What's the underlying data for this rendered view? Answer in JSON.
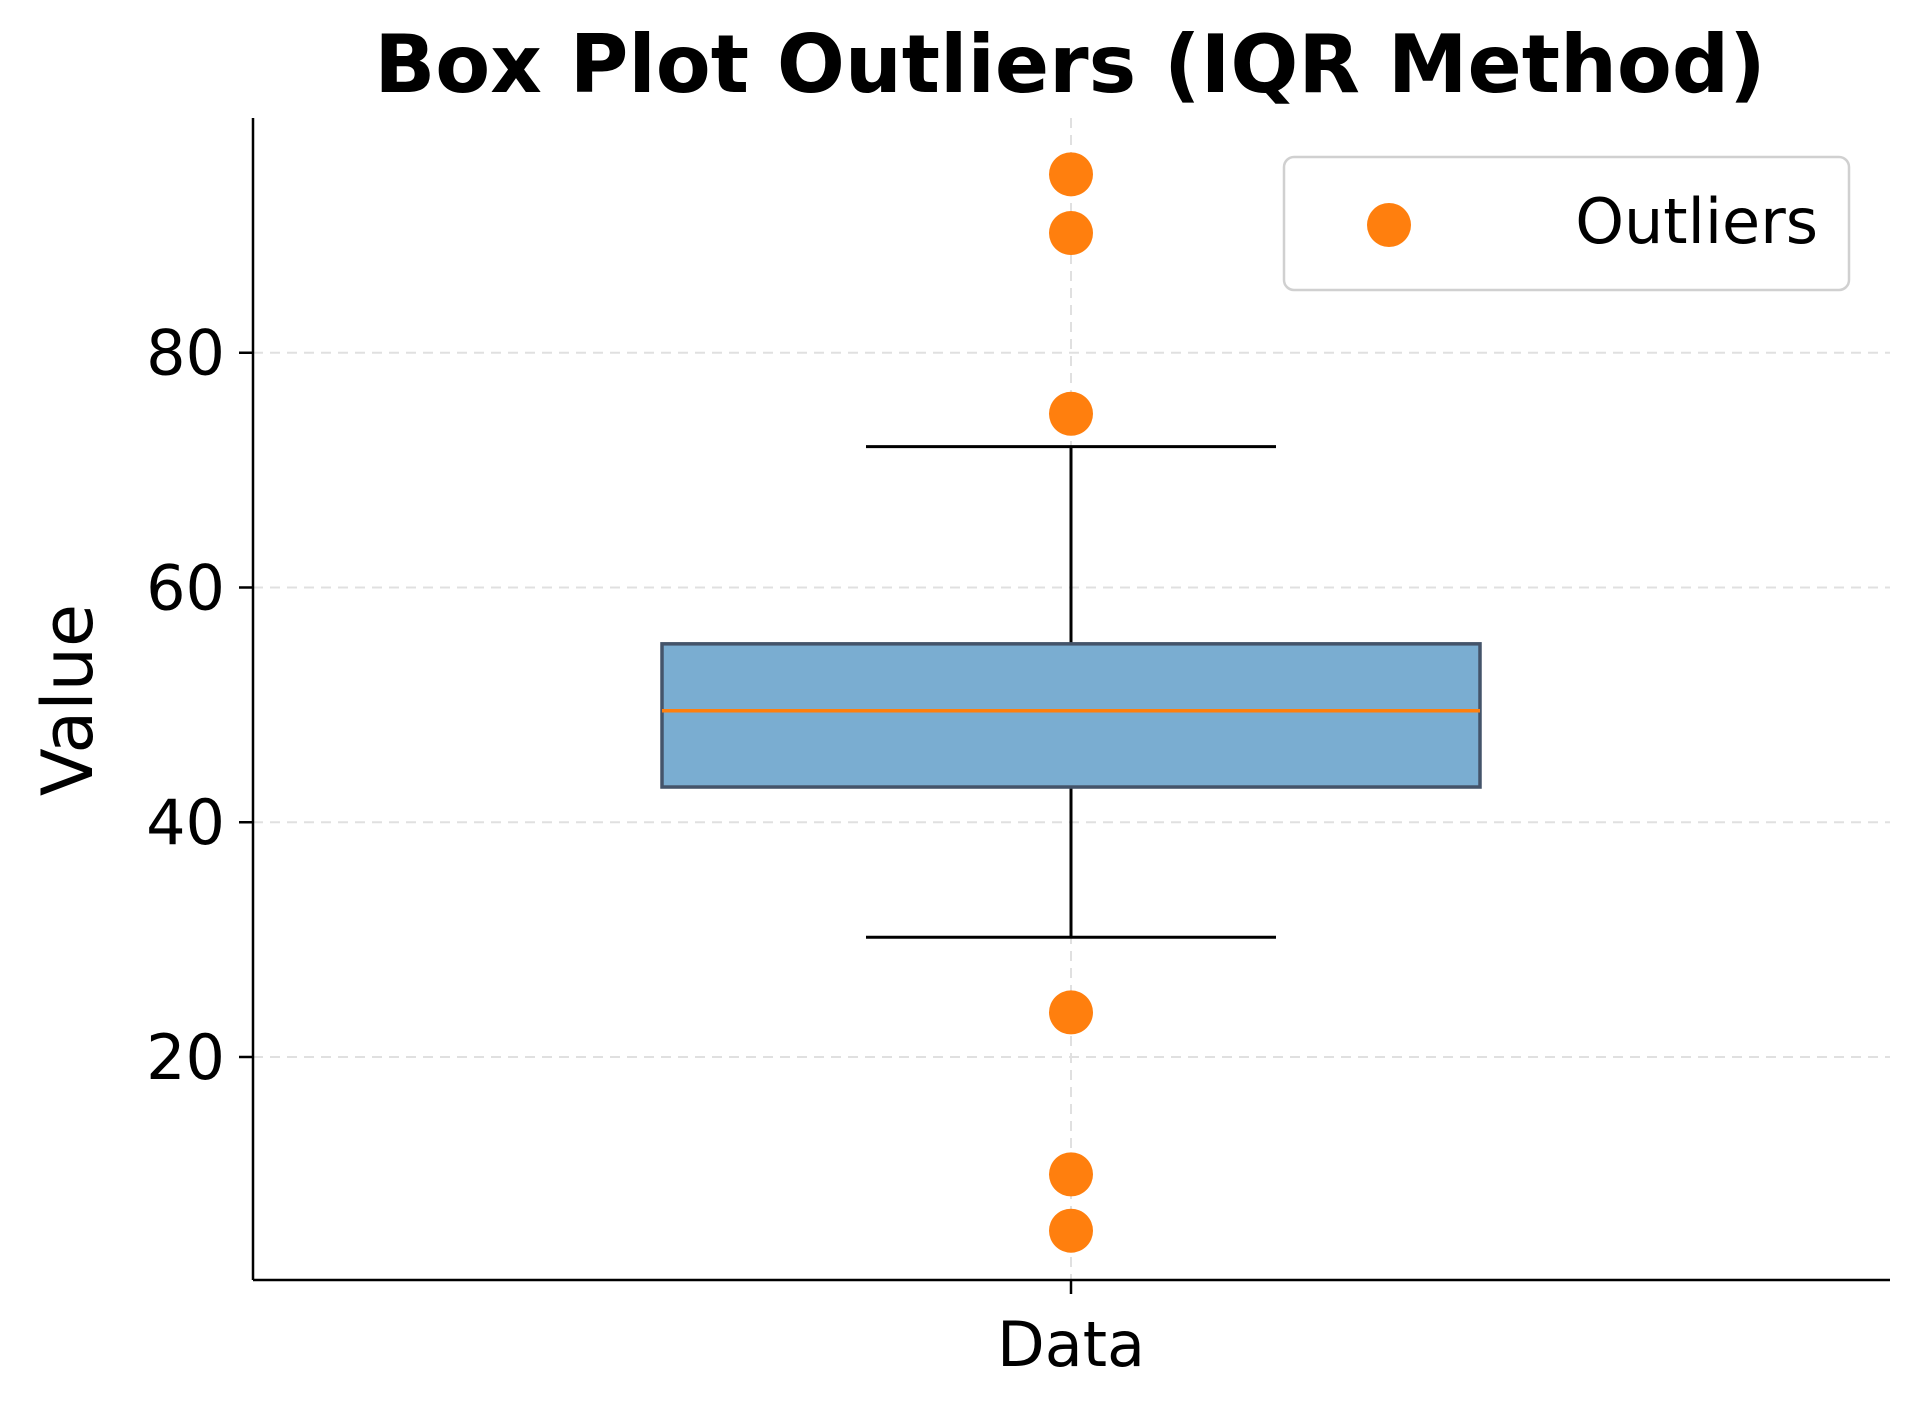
{
  "chart_data": {
    "type": "box",
    "title": "Box Plot Outliers (IQR Method)",
    "xlabel": "",
    "ylabel": "Value",
    "categories": [
      "Data"
    ],
    "ylim": [
      1,
      100
    ],
    "yticks": [
      20,
      40,
      60,
      80
    ],
    "grid": true,
    "legend": {
      "placement": "top-right",
      "entries": [
        "Outliers"
      ]
    },
    "box": {
      "q1": 43.0,
      "median": 49.5,
      "q3": 55.2,
      "whisker_low": 30.2,
      "whisker_high": 72.0
    },
    "outliers": [
      95.2,
      90.2,
      74.8,
      23.8,
      10.0,
      5.2
    ],
    "colors": {
      "box_fill": "#7aadd1",
      "box_edge": "#44546a",
      "median": "#ff7f0e",
      "outlier": "#ff7f0e",
      "grid": "#e0e0e0"
    }
  }
}
